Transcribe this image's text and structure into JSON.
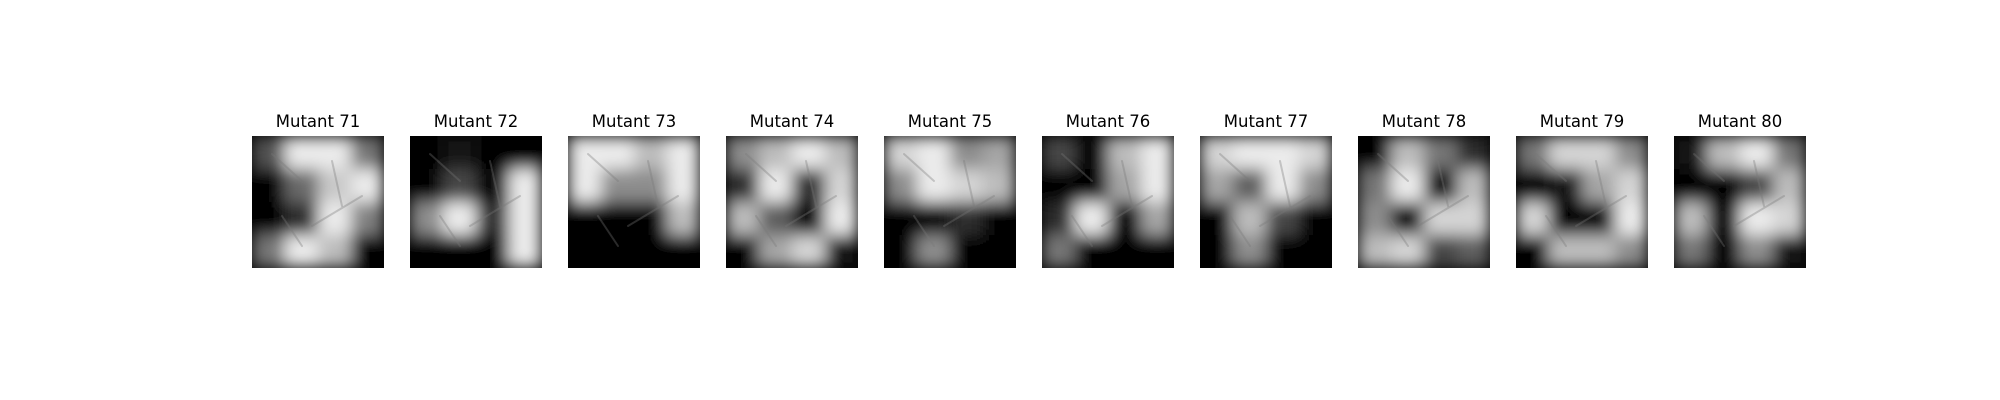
{
  "figure": {
    "panels": [
      {
        "title": "Mutant 71",
        "mask": [
          [
            0.35,
            1,
            1,
            0.5
          ],
          [
            0,
            0.45,
            0.85,
            1
          ],
          [
            0,
            0.2,
            1,
            0.55
          ],
          [
            0.5,
            1,
            0.8,
            0
          ]
        ]
      },
      {
        "title": "Mutant 72",
        "mask": [
          [
            0,
            0.1,
            0,
            0
          ],
          [
            0,
            0.3,
            0,
            1
          ],
          [
            0.6,
            1,
            0.2,
            1
          ],
          [
            0,
            0,
            0,
            1
          ]
        ]
      },
      {
        "title": "Mutant 73",
        "mask": [
          [
            1,
            1,
            0.8,
            1
          ],
          [
            1,
            0.6,
            0.6,
            1
          ],
          [
            0,
            0,
            0,
            0.8
          ],
          [
            0,
            0,
            0,
            0
          ]
        ]
      },
      {
        "title": "Mutant 74",
        "mask": [
          [
            0.6,
            0.8,
            1,
            0.8
          ],
          [
            0.2,
            1,
            0.2,
            0.9
          ],
          [
            0.8,
            0.4,
            0,
            1
          ],
          [
            0,
            0.7,
            0.9,
            0.1
          ]
        ]
      },
      {
        "title": "Mutant 75",
        "mask": [
          [
            0.9,
            1,
            0.6,
            0.7
          ],
          [
            0.6,
            1,
            0.9,
            0.8
          ],
          [
            0,
            0,
            0.2,
            0
          ],
          [
            0,
            0.6,
            0,
            0
          ]
        ]
      },
      {
        "title": "Mutant 76",
        "mask": [
          [
            0.3,
            0,
            0.8,
            1
          ],
          [
            0,
            0,
            0.7,
            1
          ],
          [
            0.2,
            1,
            0,
            0.7
          ],
          [
            0.5,
            0,
            0,
            0
          ]
        ]
      },
      {
        "title": "Mutant 77",
        "mask": [
          [
            0.9,
            1,
            1,
            0.9
          ],
          [
            0.7,
            0.4,
            1,
            0.6
          ],
          [
            0,
            0.8,
            0.3,
            0
          ],
          [
            0,
            0.6,
            0,
            0
          ]
        ]
      },
      {
        "title": "Mutant 78",
        "mask": [
          [
            0,
            0.8,
            0.5,
            0.2
          ],
          [
            0.5,
            1,
            0,
            0.8
          ],
          [
            0.6,
            0,
            0.9,
            0.9
          ],
          [
            0.8,
            0.9,
            0.3,
            0.4
          ]
        ]
      },
      {
        "title": "Mutant 79",
        "mask": [
          [
            0.5,
            0.9,
            0.9,
            0.6
          ],
          [
            0,
            0.1,
            0.7,
            0.9
          ],
          [
            0.9,
            0,
            0,
            1
          ],
          [
            0,
            0.8,
            0.8,
            0.6
          ]
        ]
      },
      {
        "title": "Mutant 80",
        "mask": [
          [
            0.1,
            0.8,
            1,
            0.5
          ],
          [
            0,
            0,
            0.3,
            0.8
          ],
          [
            0.8,
            0,
            1,
            0.9
          ],
          [
            0.5,
            0,
            0.6,
            0.1
          ]
        ]
      }
    ]
  }
}
